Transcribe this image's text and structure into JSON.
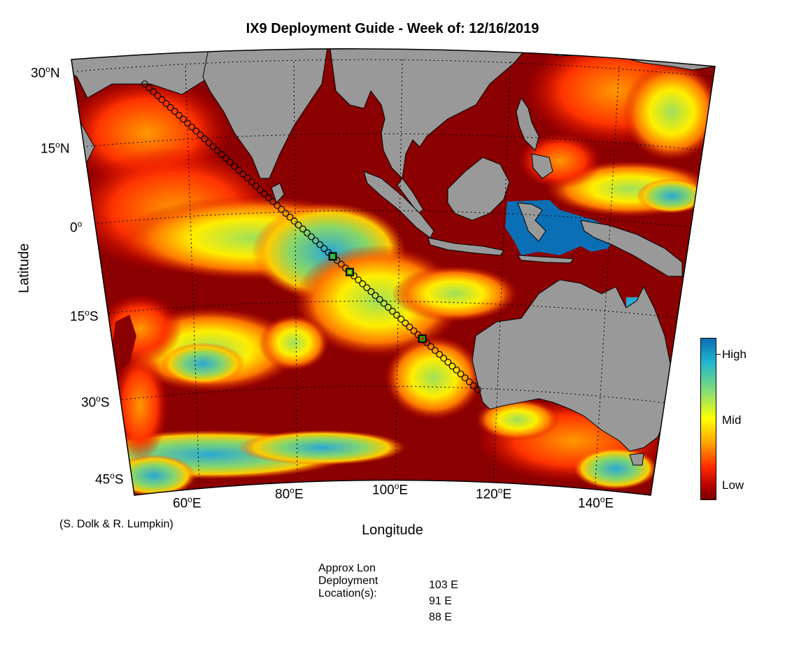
{
  "title": "IX9 Deployment Guide - Week of: 12/16/2019",
  "axes": {
    "xlabel": "Longitude",
    "ylabel": "Latitude",
    "lat_ticks": [
      {
        "value": "30",
        "hemi": "N"
      },
      {
        "value": "15",
        "hemi": "N"
      },
      {
        "value": "0",
        "hemi": ""
      },
      {
        "value": "15",
        "hemi": "S"
      },
      {
        "value": "30",
        "hemi": "S"
      },
      {
        "value": "45",
        "hemi": "S"
      }
    ],
    "lon_ticks": [
      {
        "value": "60",
        "hemi": "E"
      },
      {
        "value": "80",
        "hemi": "E"
      },
      {
        "value": "100",
        "hemi": "E"
      },
      {
        "value": "120",
        "hemi": "E"
      },
      {
        "value": "140",
        "hemi": "E"
      }
    ],
    "degree_symbol": "o"
  },
  "credit": "(S. Dolk & R. Lumpkin)",
  "colorbar": {
    "high": "High",
    "mid": "Mid",
    "low": "Low"
  },
  "deployment": {
    "label_line1": "Approx Lon",
    "label_line2": "Deployment",
    "label_line3": "Location(s):",
    "locations": [
      "103 E",
      "91 E",
      "88 E"
    ]
  },
  "colors": {
    "ocean_low": "#8b0000",
    "land": "#999999",
    "track": "#000000",
    "deploy_marker": "#00cc00"
  }
}
